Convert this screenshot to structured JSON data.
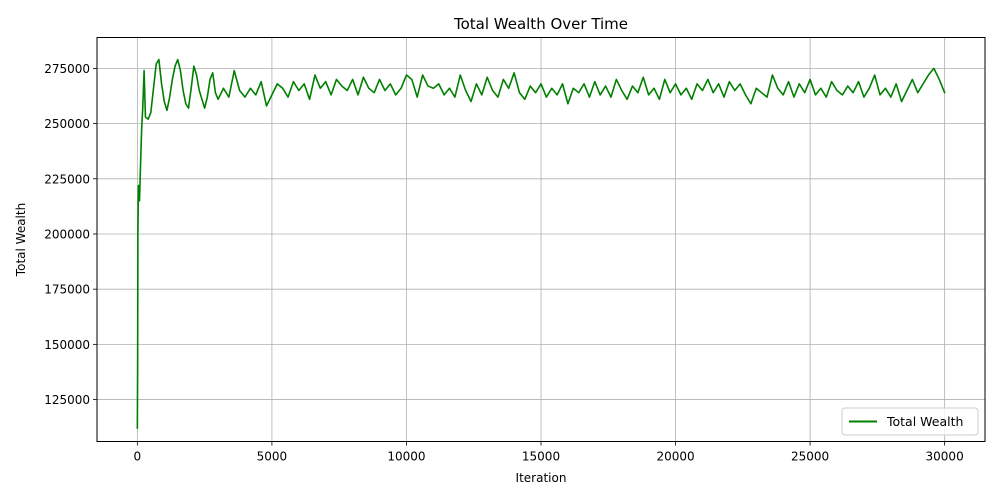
{
  "chart_data": {
    "type": "line",
    "title": "Total Wealth Over Time",
    "xlabel": "Iteration",
    "ylabel": "Total Wealth",
    "xlim": [
      -1500,
      31500
    ],
    "ylim": [
      106000,
      289000
    ],
    "xticks": [
      0,
      5000,
      10000,
      15000,
      20000,
      25000,
      30000
    ],
    "yticks": [
      125000,
      150000,
      175000,
      200000,
      225000,
      250000,
      275000
    ],
    "grid": true,
    "legend": "bottom-right",
    "series": [
      {
        "name": "Total Wealth",
        "color": "#008000",
        "x": [
          0,
          10,
          20,
          40,
          60,
          80,
          100,
          130,
          160,
          200,
          250,
          300,
          400,
          500,
          600,
          700,
          800,
          900,
          1000,
          1100,
          1200,
          1300,
          1400,
          1500,
          1600,
          1700,
          1800,
          1900,
          2000,
          2100,
          2200,
          2300,
          2400,
          2500,
          2600,
          2700,
          2800,
          2900,
          3000,
          3200,
          3400,
          3600,
          3800,
          4000,
          4200,
          4400,
          4600,
          4800,
          5000,
          5200,
          5400,
          5600,
          5800,
          6000,
          6200,
          6400,
          6600,
          6800,
          7000,
          7200,
          7400,
          7600,
          7800,
          8000,
          8200,
          8400,
          8600,
          8800,
          9000,
          9200,
          9400,
          9600,
          9800,
          10000,
          10200,
          10400,
          10600,
          10800,
          11000,
          11200,
          11400,
          11600,
          11800,
          12000,
          12200,
          12400,
          12600,
          12800,
          13000,
          13200,
          13400,
          13600,
          13800,
          14000,
          14200,
          14400,
          14600,
          14800,
          15000,
          15200,
          15400,
          15600,
          15800,
          16000,
          16200,
          16400,
          16600,
          16800,
          17000,
          17200,
          17400,
          17600,
          17800,
          18000,
          18200,
          18400,
          18600,
          18800,
          19000,
          19200,
          19400,
          19600,
          19800,
          20000,
          20200,
          20400,
          20600,
          20800,
          21000,
          21200,
          21400,
          21600,
          21800,
          22000,
          22200,
          22400,
          22600,
          22800,
          23000,
          23200,
          23400,
          23600,
          23800,
          24000,
          24200,
          24400,
          24600,
          24800,
          25000,
          25200,
          25400,
          25600,
          25800,
          26000,
          26200,
          26400,
          26600,
          26800,
          27000,
          27200,
          27400,
          27600,
          27800,
          28000,
          28200,
          28400,
          28600,
          28800,
          29000,
          29200,
          29400,
          29600,
          29800,
          30000
        ],
        "y": [
          112000,
          140000,
          200000,
          222000,
          218000,
          215000,
          224000,
          236000,
          248000,
          257000,
          274000,
          253000,
          252000,
          255000,
          266000,
          277000,
          279000,
          268000,
          260000,
          256000,
          262000,
          270000,
          276000,
          279000,
          274000,
          265000,
          259000,
          257000,
          266000,
          276000,
          272000,
          265000,
          261000,
          257000,
          262000,
          270000,
          273000,
          264000,
          261000,
          266000,
          262000,
          274000,
          265000,
          262000,
          266000,
          263000,
          269000,
          258000,
          263000,
          268000,
          266000,
          262000,
          269000,
          265000,
          268000,
          261000,
          272000,
          266000,
          269000,
          263000,
          270000,
          267000,
          265000,
          270000,
          263000,
          271000,
          266000,
          264000,
          270000,
          265000,
          268000,
          263000,
          266000,
          272000,
          270000,
          262000,
          272000,
          267000,
          266000,
          268000,
          263000,
          266000,
          262000,
          272000,
          265000,
          260000,
          268000,
          263000,
          271000,
          265000,
          262000,
          270000,
          266000,
          273000,
          264000,
          261000,
          267000,
          264000,
          268000,
          262000,
          266000,
          263000,
          268000,
          259000,
          266000,
          264000,
          268000,
          262000,
          269000,
          263000,
          267000,
          262000,
          270000,
          265000,
          261000,
          267000,
          264000,
          271000,
          263000,
          266000,
          261000,
          270000,
          264000,
          268000,
          263000,
          266000,
          261000,
          268000,
          265000,
          270000,
          264000,
          268000,
          262000,
          269000,
          265000,
          268000,
          263000,
          259000,
          266000,
          264000,
          262000,
          272000,
          266000,
          263000,
          269000,
          262000,
          268000,
          264000,
          270000,
          263000,
          266000,
          262000,
          269000,
          265000,
          263000,
          267000,
          264000,
          269000,
          262000,
          266000,
          272000,
          263000,
          266000,
          262000,
          268000,
          260000,
          265000,
          270000,
          264000,
          268000,
          272000,
          275000,
          270000,
          264000
        ]
      }
    ]
  }
}
